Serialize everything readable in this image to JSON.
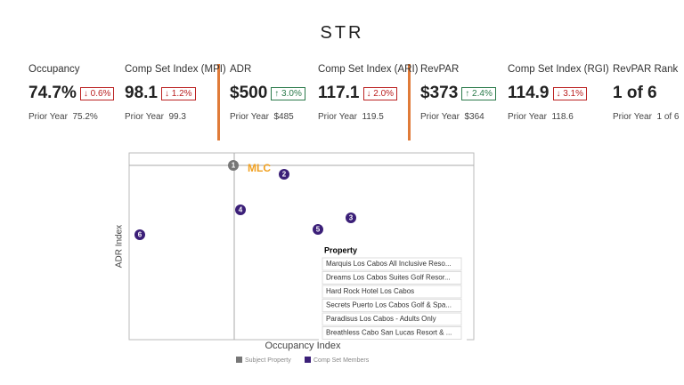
{
  "header": {
    "title": "STR"
  },
  "kpis": [
    {
      "label": "Occupancy",
      "value": "74.7%",
      "change": "↓ 0.6%",
      "direction": "down",
      "prior": "Prior Year  75.2%"
    },
    {
      "label": "Comp Set Index (MPI)",
      "value": "98.1",
      "change": "↓ 1.2%",
      "direction": "down",
      "prior": "Prior Year  99.3"
    },
    {
      "label": "ADR",
      "value": "$500",
      "change": "↑ 3.0%",
      "direction": "up",
      "prior": "Prior Year  $485"
    },
    {
      "label": "Comp Set Index (ARI)",
      "value": "117.1",
      "change": "↓ 2.0%",
      "direction": "down",
      "prior": "Prior Year  119.5"
    },
    {
      "label": "RevPAR",
      "value": "$373",
      "change": "↑ 2.4%",
      "direction": "up",
      "prior": "Prior Year  $364"
    },
    {
      "label": "Comp Set Index (RGI)",
      "value": "114.9",
      "change": "↓ 3.1%",
      "direction": "down",
      "prior": "Prior Year  118.6"
    },
    {
      "label": "RevPAR Rank",
      "value": "1 of 6",
      "prior": "Prior Year  1 of 6"
    }
  ],
  "chart": {
    "x_axis_label": "Occupancy Index",
    "y_axis_label": "ADR Index",
    "subject_label": "MLC",
    "markers": [
      {
        "label": "1",
        "kind": "subject"
      },
      {
        "label": "2",
        "kind": "comp"
      },
      {
        "label": "3",
        "kind": "comp"
      },
      {
        "label": "4",
        "kind": "comp"
      },
      {
        "label": "5",
        "kind": "comp"
      },
      {
        "label": "6",
        "kind": "comp"
      }
    ],
    "legend_title": "Property",
    "properties": [
      "Marquis Los Cabos All Inclusive Reso...",
      "Dreams Los Cabos Suites Golf Resor...",
      "Hard Rock Hotel Los Cabos",
      "Secrets Puerto Los Cabos Golf & Spa...",
      "Paradisus Los Cabos - Adults Only",
      "Breathless Cabo San Lucas Resort & ..."
    ],
    "legend": [
      {
        "name": "Subject Property",
        "kind": "subject"
      },
      {
        "name": "Comp Set Members",
        "kind": "comp"
      }
    ]
  }
}
